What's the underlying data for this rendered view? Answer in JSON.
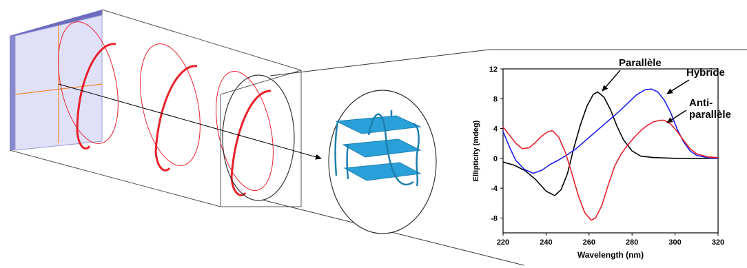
{
  "annotations": {
    "parallel": "Parallèle",
    "hybrid": "Hybride",
    "anti_line1": "Anti-",
    "anti_line2": "parallèle"
  },
  "colors": {
    "polarizer": "#d9d9f5",
    "polarizer_edge": "#6b6bbf",
    "helix": "#e8202a",
    "quadruplex": "#2aa0d8",
    "parallel_series": "#000000",
    "hybrid_series": "#1c1cf0",
    "antiparallel_series": "#e8202a"
  },
  "chart_data": {
    "type": "line",
    "xlabel": "Wavelength (nm)",
    "ylabel": "Ellipticity (mdeg)",
    "xlim": [
      220,
      320
    ],
    "ylim": [
      -10,
      12
    ],
    "xticks": [
      220,
      240,
      260,
      280,
      300,
      320
    ],
    "yticks": [
      12,
      8,
      4,
      0,
      -4,
      -8
    ],
    "series": [
      {
        "name": "Parallèle",
        "color": "#000000",
        "points": [
          [
            220,
            -0.5
          ],
          [
            225,
            -0.9
          ],
          [
            230,
            -1.6
          ],
          [
            235,
            -2.8
          ],
          [
            240,
            -4.4
          ],
          [
            244,
            -5.0
          ],
          [
            247,
            -4.2
          ],
          [
            250,
            -2.0
          ],
          [
            253,
            1.5
          ],
          [
            256,
            4.5
          ],
          [
            259,
            7.0
          ],
          [
            262,
            8.6
          ],
          [
            264,
            8.9
          ],
          [
            267,
            8.2
          ],
          [
            270,
            6.5
          ],
          [
            273,
            4.3
          ],
          [
            276,
            2.5
          ],
          [
            280,
            1.0
          ],
          [
            284,
            0.3
          ],
          [
            290,
            0.1
          ],
          [
            300,
            0.0
          ],
          [
            320,
            0.0
          ]
        ]
      },
      {
        "name": "Hybride",
        "color": "#1c1cf0",
        "points": [
          [
            220,
            3.6
          ],
          [
            223,
            1.5
          ],
          [
            226,
            -0.3
          ],
          [
            230,
            -1.5
          ],
          [
            234,
            -2.0
          ],
          [
            238,
            -1.6
          ],
          [
            242,
            -0.8
          ],
          [
            246,
            -0.2
          ],
          [
            250,
            0.5
          ],
          [
            254,
            1.3
          ],
          [
            258,
            2.3
          ],
          [
            262,
            3.3
          ],
          [
            266,
            4.3
          ],
          [
            270,
            5.3
          ],
          [
            274,
            6.3
          ],
          [
            278,
            7.4
          ],
          [
            282,
            8.5
          ],
          [
            286,
            9.2
          ],
          [
            289,
            9.3
          ],
          [
            292,
            8.9
          ],
          [
            295,
            7.8
          ],
          [
            298,
            6.1
          ],
          [
            301,
            3.9
          ],
          [
            304,
            2.2
          ],
          [
            307,
            1.0
          ],
          [
            310,
            0.4
          ],
          [
            315,
            0.1
          ],
          [
            320,
            0.0
          ]
        ]
      },
      {
        "name": "Anti-parallèle",
        "color": "#e8202a",
        "points": [
          [
            220,
            4.2
          ],
          [
            223,
            3.1
          ],
          [
            226,
            2.0
          ],
          [
            229,
            1.3
          ],
          [
            232,
            1.4
          ],
          [
            235,
            2.1
          ],
          [
            238,
            3.0
          ],
          [
            241,
            3.6
          ],
          [
            243,
            3.7
          ],
          [
            246,
            2.8
          ],
          [
            249,
            0.8
          ],
          [
            252,
            -2.0
          ],
          [
            255,
            -5.0
          ],
          [
            258,
            -7.3
          ],
          [
            261,
            -8.3
          ],
          [
            263,
            -8.0
          ],
          [
            266,
            -6.3
          ],
          [
            269,
            -3.5
          ],
          [
            272,
            -1.0
          ],
          [
            275,
            0.6
          ],
          [
            278,
            1.8
          ],
          [
            281,
            2.8
          ],
          [
            284,
            3.7
          ],
          [
            287,
            4.4
          ],
          [
            290,
            4.9
          ],
          [
            293,
            5.1
          ],
          [
            295,
            5.1
          ],
          [
            298,
            4.6
          ],
          [
            301,
            3.6
          ],
          [
            304,
            2.4
          ],
          [
            307,
            1.3
          ],
          [
            310,
            0.6
          ],
          [
            315,
            0.2
          ],
          [
            320,
            0.1
          ]
        ]
      }
    ]
  }
}
